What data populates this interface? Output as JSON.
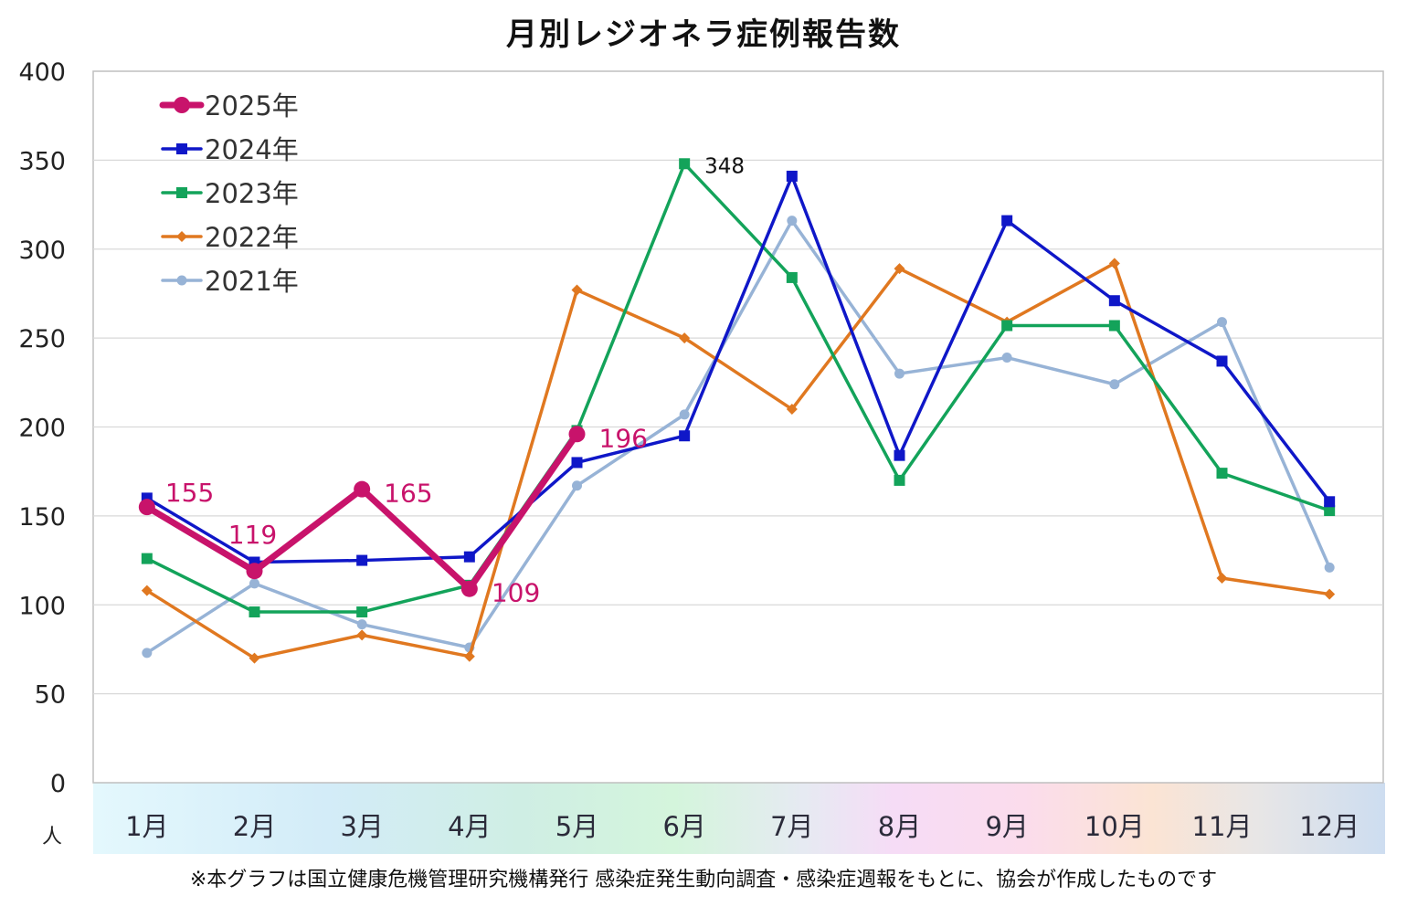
{
  "chart_data": {
    "type": "line",
    "title": "月別レジオネラ症例報告数",
    "unit_label": "人",
    "footnote": "※本グラフは国立健康危機管理研究機構発行 感染症発生動向調査・感染症週報をもとに、協会が作成したものです",
    "categories": [
      "1月",
      "2月",
      "3月",
      "4月",
      "5月",
      "6月",
      "7月",
      "8月",
      "9月",
      "10月",
      "11月",
      "12月"
    ],
    "y_ticks": [
      "0",
      "50",
      "100",
      "150",
      "200",
      "250",
      "300",
      "350",
      "400"
    ],
    "ylim": [
      0,
      400
    ],
    "grid": true,
    "legend_placement": "top-left",
    "series": [
      {
        "name": "2025年",
        "color": "#c8136b",
        "marker": "circle",
        "emphasis": true,
        "values": [
          155,
          119,
          165,
          109,
          196,
          null,
          null,
          null,
          null,
          null,
          null,
          null
        ],
        "labels": [
          "155",
          "119",
          "165",
          "109",
          "196"
        ]
      },
      {
        "name": "2024年",
        "color": "#0f17c8",
        "marker": "square",
        "values": [
          160,
          124,
          125,
          127,
          180,
          195,
          341,
          184,
          316,
          271,
          237,
          158
        ]
      },
      {
        "name": "2023年",
        "color": "#13a35a",
        "marker": "square",
        "values": [
          126,
          96,
          96,
          111,
          198,
          348,
          284,
          170,
          257,
          257,
          174,
          153
        ],
        "labels": [
          null,
          null,
          null,
          null,
          null,
          "348",
          null,
          null,
          null,
          null,
          null,
          null
        ]
      },
      {
        "name": "2022年",
        "color": "#e07820",
        "marker": "diamond",
        "values": [
          108,
          70,
          83,
          71,
          277,
          250,
          210,
          289,
          259,
          292,
          115,
          106
        ]
      },
      {
        "name": "2021年",
        "color": "#97b3d6",
        "marker": "circle",
        "values": [
          73,
          112,
          89,
          76,
          167,
          207,
          316,
          230,
          239,
          224,
          259,
          121
        ]
      }
    ]
  }
}
